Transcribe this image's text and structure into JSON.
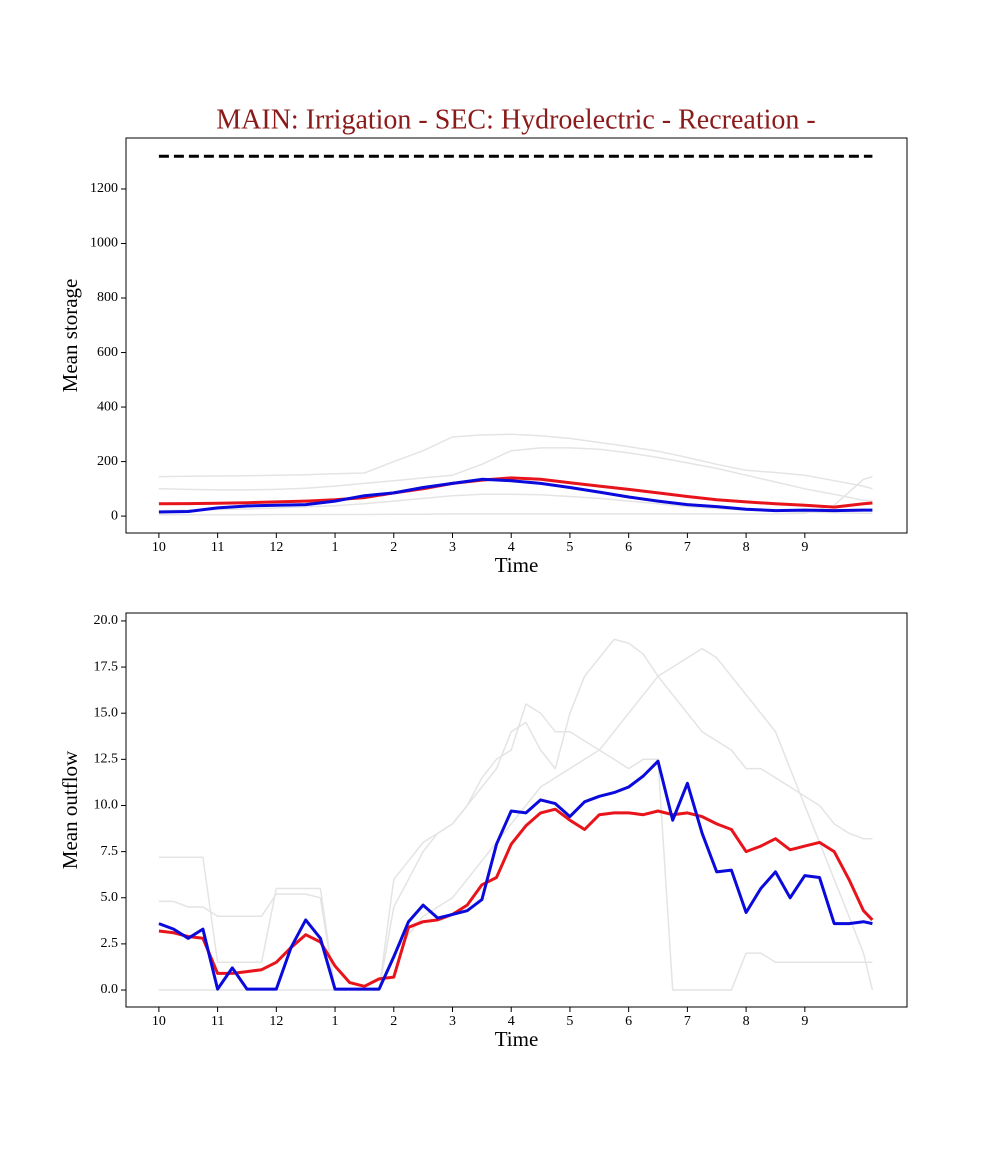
{
  "chart_data": [
    {
      "type": "line",
      "title": "MAIN: Irrigation - SEC: Hydroelectric - Recreation -",
      "title_color": "#8b1a1a",
      "xlabel": "Time",
      "ylabel": "Mean storage",
      "x": [
        0,
        0.5,
        1,
        1.5,
        2,
        2.5,
        3,
        3.5,
        4,
        4.5,
        5,
        5.5,
        6,
        6.5,
        7,
        7.5,
        8,
        8.5,
        9,
        9.5,
        10,
        10.5,
        11,
        11.5,
        12,
        12.15
      ],
      "xlim": [
        -0.56,
        12.74
      ],
      "xticks": [
        {
          "value": 0,
          "label": "10"
        },
        {
          "value": 1,
          "label": "11"
        },
        {
          "value": 2,
          "label": "12"
        },
        {
          "value": 3,
          "label": "1"
        },
        {
          "value": 4,
          "label": "2"
        },
        {
          "value": 5,
          "label": "3"
        },
        {
          "value": 6,
          "label": "4"
        },
        {
          "value": 7,
          "label": "5"
        },
        {
          "value": 8,
          "label": "6"
        },
        {
          "value": 9,
          "label": "7"
        },
        {
          "value": 10,
          "label": "8"
        },
        {
          "value": 11,
          "label": "9"
        }
      ],
      "ylim": [
        -62,
        1387
      ],
      "yticks": [
        0,
        200,
        400,
        600,
        800,
        1000,
        1200
      ],
      "series": [
        {
          "color": "#e4e4e4",
          "linewidth": 1.5,
          "values": [
            145,
            146,
            147,
            148,
            150,
            152,
            155,
            158,
            200,
            240,
            290,
            298,
            300,
            295,
            285,
            270,
            255,
            238,
            215,
            190,
            168,
            160,
            150,
            130,
            110,
            100
          ]
        },
        {
          "color": "#e4e4e4",
          "linewidth": 1.5,
          "values": [
            100,
            98,
            96,
            96,
            98,
            102,
            110,
            120,
            130,
            140,
            150,
            190,
            240,
            250,
            250,
            245,
            232,
            215,
            195,
            175,
            150,
            125,
            100,
            80,
            58,
            55
          ]
        },
        {
          "color": "#e4e4e4",
          "linewidth": 1.5,
          "values": [
            20,
            22,
            24,
            26,
            30,
            34,
            38,
            45,
            55,
            65,
            75,
            80,
            80,
            78,
            72,
            65,
            55,
            45,
            35,
            28,
            22,
            18,
            14,
            12,
            10,
            10
          ]
        },
        {
          "color": "#e4e4e4",
          "linewidth": 1.5,
          "values": [
            5,
            5,
            5,
            5,
            6,
            6,
            6,
            6,
            7,
            7,
            8,
            8,
            8,
            8,
            8,
            8,
            8,
            8,
            8,
            8,
            8,
            8,
            10,
            40,
            135,
            145
          ]
        },
        {
          "color": "#000000",
          "linewidth": 3,
          "dashed": true,
          "values": [
            1320,
            1320,
            1320,
            1320,
            1320,
            1320,
            1320,
            1320,
            1320,
            1320,
            1320,
            1320,
            1320,
            1320,
            1320,
            1320,
            1320,
            1320,
            1320,
            1320,
            1320,
            1320,
            1320,
            1320,
            1320,
            1320
          ]
        },
        {
          "color": "#e8141c",
          "linewidth": 3,
          "values": [
            45,
            46,
            47,
            49,
            52,
            55,
            60,
            68,
            85,
            100,
            120,
            132,
            140,
            135,
            122,
            110,
            98,
            85,
            72,
            60,
            52,
            45,
            40,
            33,
            45,
            48
          ]
        },
        {
          "color": "#0a0adc",
          "linewidth": 3,
          "values": [
            15,
            17,
            30,
            37,
            40,
            42,
            55,
            75,
            85,
            105,
            120,
            135,
            130,
            120,
            105,
            88,
            70,
            55,
            42,
            35,
            25,
            20,
            22,
            20,
            22,
            22
          ]
        }
      ]
    },
    {
      "type": "line",
      "xlabel": "Time",
      "ylabel": "Mean outflow",
      "x": [
        0,
        0.25,
        0.5,
        0.75,
        1,
        1.25,
        1.5,
        1.75,
        2,
        2.25,
        2.5,
        2.75,
        3,
        3.25,
        3.5,
        3.75,
        4,
        4.25,
        4.5,
        4.75,
        5,
        5.25,
        5.5,
        5.75,
        6,
        6.25,
        6.5,
        6.75,
        7,
        7.25,
        7.5,
        7.75,
        8,
        8.25,
        8.5,
        8.75,
        9,
        9.25,
        9.5,
        9.75,
        10,
        10.25,
        10.5,
        10.75,
        11,
        11.25,
        11.5,
        11.75,
        12,
        12.15
      ],
      "xlim": [
        -0.56,
        12.74
      ],
      "xticks": [
        {
          "value": 0,
          "label": "10"
        },
        {
          "value": 1,
          "label": "11"
        },
        {
          "value": 2,
          "label": "12"
        },
        {
          "value": 3,
          "label": "1"
        },
        {
          "value": 4,
          "label": "2"
        },
        {
          "value": 5,
          "label": "3"
        },
        {
          "value": 6,
          "label": "4"
        },
        {
          "value": 7,
          "label": "5"
        },
        {
          "value": 8,
          "label": "6"
        },
        {
          "value": 9,
          "label": "7"
        },
        {
          "value": 10,
          "label": "8"
        },
        {
          "value": 11,
          "label": "9"
        }
      ],
      "ylim": [
        -0.92,
        20.43
      ],
      "yticks": [
        {
          "value": 0,
          "label": "0.0"
        },
        2.5,
        {
          "value": 5,
          "label": "5.0"
        },
        7.5,
        {
          "value": 10,
          "label": "10.0"
        },
        12.5,
        {
          "value": 15,
          "label": "15.0"
        },
        17.5,
        {
          "value": 20,
          "label": "20.0"
        }
      ],
      "series": [
        {
          "color": "#e4e4e4",
          "linewidth": 1.5,
          "values": [
            7.2,
            7.2,
            7.2,
            7.2,
            1.5,
            1.5,
            1.5,
            1.5,
            5.5,
            5.5,
            5.5,
            5.5,
            0,
            0,
            0,
            0,
            6,
            7,
            8,
            8.5,
            9,
            10,
            11,
            12,
            14,
            14.5,
            13,
            12,
            15,
            17,
            18,
            19,
            18.8,
            18.2,
            17,
            16,
            15,
            14,
            13.5,
            13,
            12,
            12,
            11.5,
            11,
            10.5,
            10,
            9,
            8.5,
            8.2,
            8.2
          ]
        },
        {
          "color": "#e4e4e4",
          "linewidth": 1.5,
          "values": [
            4.8,
            4.8,
            4.5,
            4.5,
            4,
            4,
            4,
            4,
            5.2,
            5.2,
            5.2,
            5,
            0,
            0,
            0,
            0,
            4.5,
            6,
            7.5,
            8.5,
            9,
            10,
            11.5,
            12.5,
            13,
            15.5,
            15,
            14,
            14,
            13.5,
            13,
            12.5,
            12,
            12.5,
            12.5,
            0,
            0,
            0,
            0,
            0,
            2,
            2,
            1.5,
            1.5,
            1.5,
            1.5,
            1.5,
            1.5,
            1.5,
            1.5
          ]
        },
        {
          "color": "#e4e4e4",
          "linewidth": 1.5,
          "values": [
            0,
            0,
            0,
            0,
            0,
            0,
            0,
            0,
            0,
            0,
            0,
            0,
            0,
            0,
            0,
            0,
            2,
            3,
            4,
            4.5,
            5,
            6,
            7,
            8,
            9,
            10,
            11,
            11.5,
            12,
            12.5,
            13,
            14,
            15,
            16,
            17,
            17.5,
            18,
            18.5,
            18,
            17,
            16,
            15,
            14,
            12,
            10,
            8,
            6,
            4,
            2,
            0
          ]
        },
        {
          "color": "#e8141c",
          "linewidth": 3,
          "values": [
            3.2,
            3.1,
            2.9,
            2.8,
            0.9,
            0.9,
            1.0,
            1.1,
            1.5,
            2.3,
            3.0,
            2.6,
            1.3,
            0.4,
            0.2,
            0.6,
            0.7,
            3.4,
            3.7,
            3.8,
            4.1,
            4.6,
            5.7,
            6.1,
            7.9,
            8.9,
            9.6,
            9.8,
            9.2,
            8.7,
            9.5,
            9.6,
            9.6,
            9.5,
            9.7,
            9.5,
            9.6,
            9.4,
            9.0,
            8.7,
            7.5,
            7.8,
            8.2,
            7.6,
            7.8,
            8.0,
            7.5,
            6.0,
            4.3,
            3.8
          ]
        },
        {
          "color": "#0a0adc",
          "linewidth": 3,
          "values": [
            3.6,
            3.3,
            2.8,
            3.3,
            0.05,
            1.2,
            0.05,
            0.05,
            0.05,
            2.3,
            3.8,
            2.8,
            0.05,
            0.05,
            0.05,
            0.05,
            1.8,
            3.7,
            4.6,
            3.9,
            4.1,
            4.3,
            4.9,
            7.9,
            9.7,
            9.6,
            10.3,
            10.1,
            9.4,
            10.2,
            10.5,
            10.7,
            11.0,
            11.6,
            12.4,
            9.2,
            11.2,
            8.5,
            6.4,
            6.5,
            4.2,
            5.5,
            6.4,
            5.0,
            6.2,
            6.1,
            3.6,
            3.6,
            3.7,
            3.6
          ]
        }
      ]
    }
  ]
}
